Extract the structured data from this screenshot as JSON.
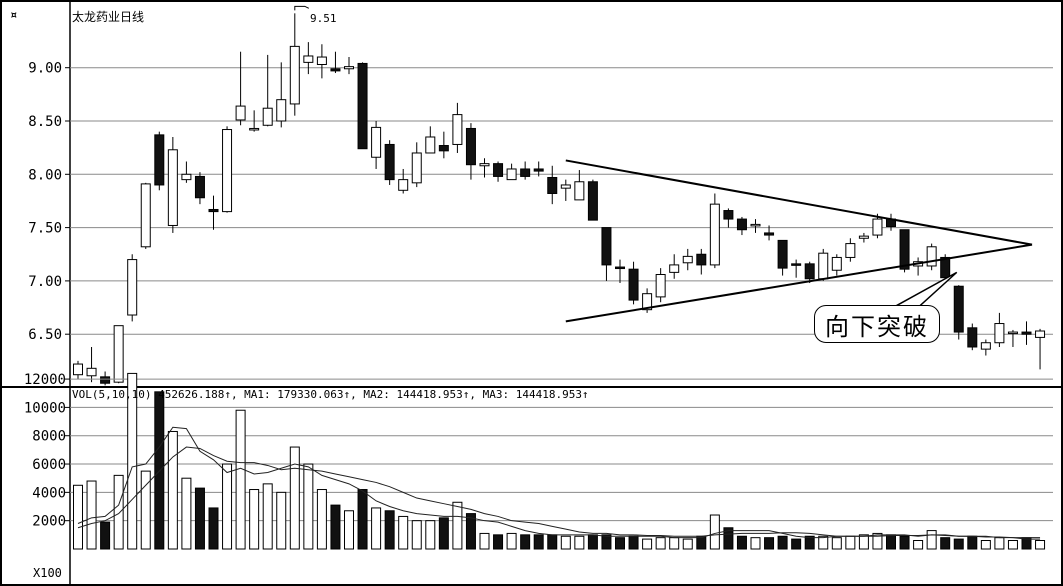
{
  "chart_data": [
    {
      "type": "candlestick",
      "title": "太龙药业日线",
      "y_ticks": [
        9.0,
        8.5,
        8.0,
        7.5,
        7.0,
        6.5
      ],
      "y_tick_labels": [
        "9.00",
        "8.50",
        "8.00",
        "7.50",
        "7.00",
        "6.50"
      ],
      "ylim": [
        6.05,
        9.55
      ],
      "high_marker": "9.51",
      "annotation": "向下突破",
      "grid": true,
      "candles": [
        [
          6.12,
          6.22,
          6.25,
          6.08
        ],
        [
          6.11,
          6.18,
          6.38,
          6.05
        ],
        [
          6.1,
          6.04,
          6.15,
          6.02
        ],
        [
          6.05,
          6.58,
          6.58,
          6.04
        ],
        [
          6.68,
          7.2,
          7.25,
          6.62
        ],
        [
          7.32,
          7.91,
          7.92,
          7.3
        ],
        [
          8.37,
          7.9,
          8.4,
          7.85
        ],
        [
          7.52,
          8.23,
          8.35,
          7.45
        ],
        [
          7.95,
          8.0,
          8.12,
          7.92
        ],
        [
          7.98,
          7.78,
          8.02,
          7.72
        ],
        [
          7.67,
          7.65,
          7.8,
          7.48
        ],
        [
          7.65,
          8.42,
          8.45,
          7.64
        ],
        [
          8.51,
          8.64,
          9.15,
          8.46
        ],
        [
          8.43,
          8.43,
          8.6,
          8.4
        ],
        [
          8.46,
          8.62,
          9.12,
          8.45
        ],
        [
          8.5,
          8.7,
          9.05,
          8.44
        ],
        [
          8.66,
          9.2,
          9.51,
          8.55
        ],
        [
          9.05,
          9.11,
          9.24,
          8.94
        ],
        [
          9.03,
          9.1,
          9.22,
          8.9
        ],
        [
          8.99,
          8.97,
          9.15,
          8.95
        ],
        [
          8.99,
          9.01,
          9.1,
          8.94
        ],
        [
          9.04,
          8.24,
          9.05,
          8.24
        ],
        [
          8.16,
          8.44,
          8.5,
          8.05
        ],
        [
          8.28,
          7.95,
          8.32,
          7.9
        ],
        [
          7.85,
          7.95,
          8.05,
          7.82
        ],
        [
          7.92,
          8.2,
          8.3,
          7.88
        ],
        [
          8.2,
          8.35,
          8.45,
          8.2
        ],
        [
          8.27,
          8.22,
          8.4,
          8.15
        ],
        [
          8.28,
          8.56,
          8.67,
          8.2
        ],
        [
          8.43,
          8.09,
          8.48,
          7.95
        ],
        [
          8.08,
          8.1,
          8.15,
          7.97
        ],
        [
          8.1,
          7.98,
          8.12,
          7.93
        ],
        [
          7.95,
          8.05,
          8.1,
          7.95
        ],
        [
          8.05,
          7.98,
          8.12,
          7.95
        ],
        [
          8.05,
          8.03,
          8.12,
          7.98
        ],
        [
          7.97,
          7.82,
          8.08,
          7.72
        ],
        [
          7.87,
          7.9,
          7.95,
          7.75
        ],
        [
          7.76,
          7.93,
          8.04,
          7.76
        ],
        [
          7.93,
          7.57,
          7.95,
          7.57
        ],
        [
          7.5,
          7.15,
          7.5,
          7.0
        ],
        [
          7.13,
          7.12,
          7.2,
          6.98
        ],
        [
          7.11,
          6.82,
          7.18,
          6.78
        ],
        [
          6.73,
          6.88,
          6.93,
          6.7
        ],
        [
          6.85,
          7.06,
          7.12,
          6.8
        ],
        [
          7.08,
          7.15,
          7.25,
          7.02
        ],
        [
          7.17,
          7.23,
          7.3,
          7.1
        ],
        [
          7.25,
          7.15,
          7.3,
          7.06
        ],
        [
          7.15,
          7.72,
          7.82,
          7.12
        ],
        [
          7.66,
          7.58,
          7.68,
          7.5
        ],
        [
          7.58,
          7.48,
          7.6,
          7.43
        ],
        [
          7.53,
          7.53,
          7.58,
          7.45
        ],
        [
          7.45,
          7.43,
          7.52,
          7.38
        ],
        [
          7.38,
          7.12,
          7.38,
          7.05
        ],
        [
          7.16,
          7.15,
          7.2,
          7.03
        ],
        [
          7.16,
          7.02,
          7.18,
          6.98
        ],
        [
          7.02,
          7.26,
          7.3,
          7.0
        ],
        [
          7.1,
          7.22,
          7.25,
          7.05
        ],
        [
          7.22,
          7.35,
          7.4,
          7.18
        ],
        [
          7.4,
          7.42,
          7.45,
          7.36
        ],
        [
          7.43,
          7.58,
          7.63,
          7.4
        ],
        [
          7.58,
          7.51,
          7.63,
          7.47
        ],
        [
          7.48,
          7.11,
          7.48,
          7.08
        ],
        [
          7.14,
          7.18,
          7.22,
          7.05
        ],
        [
          7.14,
          7.32,
          7.35,
          7.1
        ],
        [
          7.22,
          7.03,
          7.25,
          7.03
        ],
        [
          6.95,
          6.52,
          6.96,
          6.45
        ],
        [
          6.56,
          6.38,
          6.6,
          6.35
        ],
        [
          6.36,
          6.42,
          6.45,
          6.3
        ],
        [
          6.42,
          6.6,
          6.7,
          6.38
        ],
        [
          6.52,
          6.52,
          6.54,
          6.38
        ],
        [
          6.52,
          6.5,
          6.62,
          6.4
        ],
        [
          6.47,
          6.53,
          6.55,
          6.17
        ]
      ]
    },
    {
      "type": "volume-bar",
      "header": "VOL(5,10,10) 452626.188↑, MA1: 179330.063↑, MA2: 144418.953↑, MA3: 144418.953↑",
      "y_ticks": [
        12000,
        10000,
        8000,
        6000,
        4000,
        2000
      ],
      "y_tick_labels": [
        "12000",
        "10000",
        "8000",
        "6000",
        "4000",
        "2000"
      ],
      "unit_label": "X100",
      "ylim": [
        0,
        13000
      ],
      "values": [
        4500,
        4800,
        1900,
        5200,
        12400,
        5500,
        11100,
        8300,
        5000,
        4300,
        2900,
        6000,
        9800,
        4200,
        4600,
        4000,
        7200,
        6000,
        4200,
        3100,
        2700,
        4200,
        2900,
        2700,
        2300,
        2000,
        2000,
        2200,
        3300,
        2500,
        1100,
        1000,
        1100,
        1000,
        1000,
        1000,
        900,
        900,
        1000,
        1000,
        800,
        900,
        700,
        800,
        800,
        700,
        900,
        2400,
        1500,
        900,
        800,
        800,
        900,
        700,
        900,
        900,
        800,
        900,
        1000,
        1100,
        1000,
        900,
        600,
        1300,
        800,
        700,
        900,
        600,
        800,
        600,
        800,
        600
      ],
      "ma_series": [
        {
          "values": [
            1800,
            2200,
            2300,
            3100,
            5800,
            6000,
            7200,
            8600,
            8500,
            6900,
            6300,
            5400,
            5700,
            5300,
            5400,
            5700,
            6000,
            5800,
            5200,
            4900,
            4600,
            4100,
            3400,
            3000,
            2700,
            2500,
            2400,
            2300,
            2300,
            2200,
            2000,
            1900,
            1600,
            1300,
            1100,
            1000,
            1000,
            1000,
            1000,
            900,
            900,
            900,
            900,
            900,
            800,
            800,
            800,
            1100,
            1300,
            1300,
            1300,
            1300,
            1100,
            900,
            800,
            800,
            900,
            900,
            900,
            1000,
            1000,
            1000,
            900,
            1000,
            1000,
            900,
            900,
            900,
            800,
            800,
            700,
            700
          ]
        },
        {
          "values": [
            1500,
            1800,
            2000,
            2500,
            3500,
            4500,
            5500,
            6500,
            7200,
            7100,
            6600,
            6200,
            6100,
            6100,
            5900,
            5600,
            5700,
            5600,
            5500,
            5300,
            5100,
            4900,
            4700,
            4400,
            4000,
            3600,
            3400,
            3200,
            3000,
            2800,
            2500,
            2300,
            2000,
            1900,
            1800,
            1600,
            1400,
            1200,
            1100,
            1100,
            1000,
            1000,
            950,
            950,
            900,
            900,
            900,
            1000,
            1050,
            1100,
            1100,
            1100,
            1150,
            1150,
            1100,
            1000,
            900,
            900,
            900,
            900,
            950,
            950,
            950,
            1000,
            950,
            900,
            900,
            850,
            850,
            800,
            800,
            800
          ]
        }
      ]
    }
  ]
}
